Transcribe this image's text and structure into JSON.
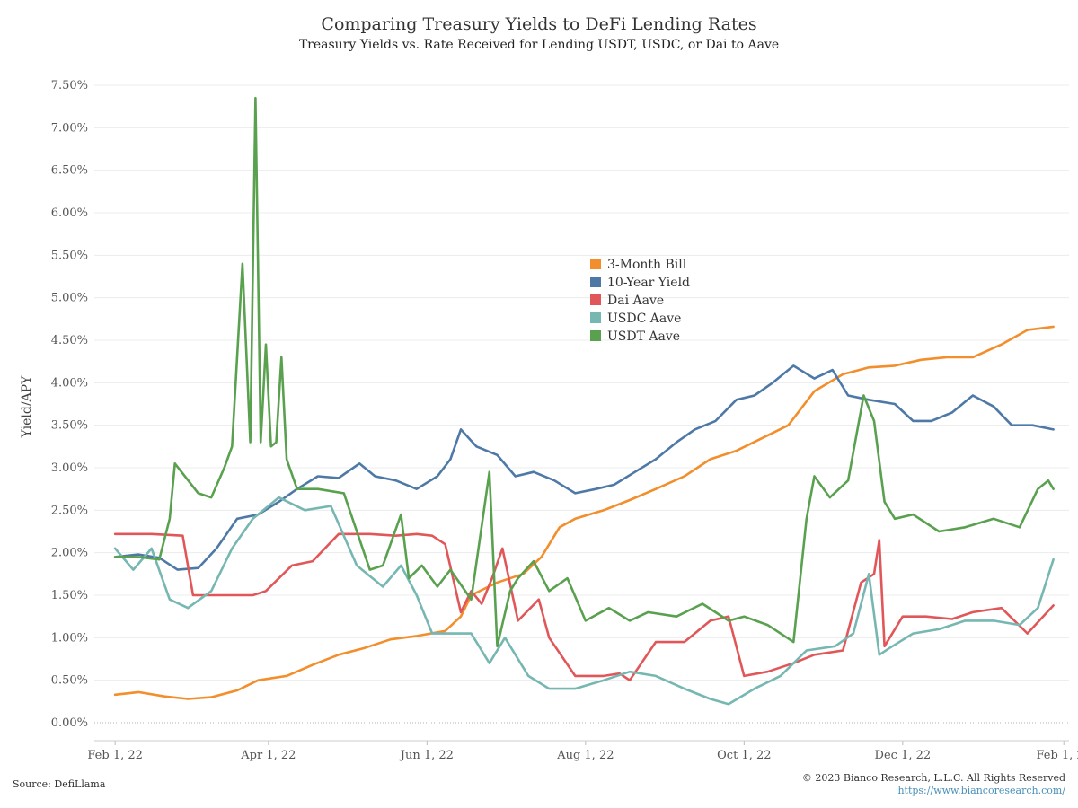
{
  "chart_data": {
    "type": "line",
    "title": "Comparing Treasury Yields to DeFi Lending Rates",
    "subtitle": "Treasury Yields vs. Rate Received for Lending USDT, USDC, or Dai to Aave",
    "ylabel": "Yield/APY",
    "xlabel": "",
    "ylim": [
      0,
      7.6
    ],
    "xlim": [
      "2022-01-24",
      "2023-02-03"
    ],
    "yticks": [
      0,
      0.5,
      1.0,
      1.5,
      2.0,
      2.5,
      3.0,
      3.5,
      4.0,
      4.5,
      5.0,
      5.5,
      6.0,
      6.5,
      7.0,
      7.5
    ],
    "ytick_labels": [
      "0.00%",
      "0.50%",
      "1.00%",
      "1.50%",
      "2.00%",
      "2.50%",
      "3.00%",
      "3.50%",
      "4.00%",
      "4.50%",
      "5.00%",
      "5.50%",
      "6.00%",
      "6.50%",
      "7.00%",
      "7.50%"
    ],
    "xticks": [
      "2022-02-01",
      "2022-04-01",
      "2022-06-01",
      "2022-08-01",
      "2022-10-01",
      "2022-12-01",
      "2023-02-01"
    ],
    "xtick_labels": [
      "Feb 1, 22",
      "Apr 1, 22",
      "Jun 1, 22",
      "Aug 1, 22",
      "Oct 1, 22",
      "Dec 1, 22",
      "Feb 1, 23"
    ],
    "grid": "horizontal",
    "legend_position": "center",
    "series": [
      {
        "name": "3-Month Bill",
        "color": "#f28e2b",
        "x": [
          "2022-02-01",
          "2022-02-10",
          "2022-02-20",
          "2022-03-01",
          "2022-03-10",
          "2022-03-20",
          "2022-03-28",
          "2022-04-08",
          "2022-04-18",
          "2022-04-28",
          "2022-05-08",
          "2022-05-18",
          "2022-05-28",
          "2022-06-08",
          "2022-06-14",
          "2022-06-18",
          "2022-06-28",
          "2022-07-08",
          "2022-07-15",
          "2022-07-22",
          "2022-07-28",
          "2022-08-08",
          "2022-08-18",
          "2022-08-28",
          "2022-09-08",
          "2022-09-18",
          "2022-09-28",
          "2022-10-08",
          "2022-10-18",
          "2022-10-28",
          "2022-11-08",
          "2022-11-18",
          "2022-11-28",
          "2022-12-08",
          "2022-12-18",
          "2022-12-28",
          "2023-01-08",
          "2023-01-18",
          "2023-01-28"
        ],
        "values": [
          0.33,
          0.36,
          0.31,
          0.28,
          0.3,
          0.38,
          0.5,
          0.55,
          0.68,
          0.8,
          0.88,
          0.98,
          1.02,
          1.08,
          1.25,
          1.5,
          1.65,
          1.75,
          1.95,
          2.3,
          2.4,
          2.5,
          2.62,
          2.75,
          2.9,
          3.1,
          3.2,
          3.35,
          3.5,
          3.9,
          4.1,
          4.18,
          4.2,
          4.27,
          4.3,
          4.3,
          4.45,
          4.62,
          4.66
        ]
      },
      {
        "name": "10-Year Yield",
        "color": "#4e79a7",
        "x": [
          "2022-02-01",
          "2022-02-10",
          "2022-02-18",
          "2022-02-25",
          "2022-03-05",
          "2022-03-12",
          "2022-03-20",
          "2022-03-28",
          "2022-04-05",
          "2022-04-12",
          "2022-04-20",
          "2022-04-28",
          "2022-05-06",
          "2022-05-12",
          "2022-05-20",
          "2022-05-28",
          "2022-06-05",
          "2022-06-10",
          "2022-06-14",
          "2022-06-20",
          "2022-06-28",
          "2022-07-05",
          "2022-07-12",
          "2022-07-20",
          "2022-07-28",
          "2022-08-05",
          "2022-08-12",
          "2022-08-20",
          "2022-08-28",
          "2022-09-05",
          "2022-09-12",
          "2022-09-20",
          "2022-09-28",
          "2022-10-05",
          "2022-10-12",
          "2022-10-20",
          "2022-10-28",
          "2022-11-04",
          "2022-11-10",
          "2022-11-18",
          "2022-11-28",
          "2022-12-05",
          "2022-12-12",
          "2022-12-20",
          "2022-12-28",
          "2023-01-05",
          "2023-01-12",
          "2023-01-20",
          "2023-01-28"
        ],
        "values": [
          1.95,
          1.98,
          1.94,
          1.8,
          1.82,
          2.05,
          2.4,
          2.45,
          2.6,
          2.75,
          2.9,
          2.88,
          3.05,
          2.9,
          2.85,
          2.75,
          2.9,
          3.1,
          3.45,
          3.25,
          3.15,
          2.9,
          2.95,
          2.85,
          2.7,
          2.75,
          2.8,
          2.95,
          3.1,
          3.3,
          3.45,
          3.55,
          3.8,
          3.85,
          4.0,
          4.2,
          4.05,
          4.15,
          3.85,
          3.8,
          3.75,
          3.55,
          3.55,
          3.65,
          3.85,
          3.72,
          3.5,
          3.5,
          3.45
        ]
      },
      {
        "name": "Dai Aave",
        "color": "#e15759",
        "x": [
          "2022-02-01",
          "2022-02-15",
          "2022-02-27",
          "2022-03-03",
          "2022-03-15",
          "2022-03-26",
          "2022-03-31",
          "2022-04-10",
          "2022-04-18",
          "2022-04-28",
          "2022-05-10",
          "2022-05-20",
          "2022-05-28",
          "2022-06-03",
          "2022-06-08",
          "2022-06-14",
          "2022-06-18",
          "2022-06-22",
          "2022-06-26",
          "2022-06-30",
          "2022-07-06",
          "2022-07-14",
          "2022-07-18",
          "2022-07-28",
          "2022-08-08",
          "2022-08-14",
          "2022-08-18",
          "2022-08-28",
          "2022-09-08",
          "2022-09-18",
          "2022-09-25",
          "2022-10-01",
          "2022-10-10",
          "2022-10-20",
          "2022-10-28",
          "2022-11-08",
          "2022-11-15",
          "2022-11-20",
          "2022-11-22",
          "2022-11-24",
          "2022-12-01",
          "2022-12-10",
          "2022-12-20",
          "2022-12-28",
          "2023-01-08",
          "2023-01-18",
          "2023-01-28"
        ],
        "values": [
          2.22,
          2.22,
          2.2,
          1.5,
          1.5,
          1.5,
          1.55,
          1.85,
          1.9,
          2.22,
          2.22,
          2.2,
          2.22,
          2.2,
          2.1,
          1.3,
          1.55,
          1.4,
          1.7,
          2.05,
          1.2,
          1.45,
          1.0,
          0.55,
          0.55,
          0.58,
          0.5,
          0.95,
          0.95,
          1.2,
          1.25,
          0.55,
          0.6,
          0.7,
          0.8,
          0.85,
          1.65,
          1.75,
          2.15,
          0.9,
          1.25,
          1.25,
          1.22,
          1.3,
          1.35,
          1.05,
          1.38
        ]
      },
      {
        "name": "USDC Aave",
        "color": "#76b7b2",
        "x": [
          "2022-02-01",
          "2022-02-08",
          "2022-02-15",
          "2022-02-22",
          "2022-03-01",
          "2022-03-10",
          "2022-03-18",
          "2022-03-26",
          "2022-04-05",
          "2022-04-15",
          "2022-04-25",
          "2022-05-05",
          "2022-05-15",
          "2022-05-22",
          "2022-05-28",
          "2022-06-03",
          "2022-06-10",
          "2022-06-18",
          "2022-06-25",
          "2022-07-01",
          "2022-07-10",
          "2022-07-18",
          "2022-07-28",
          "2022-08-08",
          "2022-08-18",
          "2022-08-28",
          "2022-09-08",
          "2022-09-18",
          "2022-09-25",
          "2022-10-05",
          "2022-10-15",
          "2022-10-25",
          "2022-11-05",
          "2022-11-12",
          "2022-11-18",
          "2022-11-22",
          "2022-11-26",
          "2022-12-05",
          "2022-12-15",
          "2022-12-25",
          "2023-01-05",
          "2023-01-15",
          "2023-01-22",
          "2023-01-28"
        ],
        "values": [
          2.05,
          1.8,
          2.05,
          1.45,
          1.35,
          1.55,
          2.05,
          2.4,
          2.65,
          2.5,
          2.55,
          1.85,
          1.6,
          1.85,
          1.5,
          1.05,
          1.05,
          1.05,
          0.7,
          1.0,
          0.55,
          0.4,
          0.4,
          0.5,
          0.6,
          0.55,
          0.4,
          0.28,
          0.22,
          0.4,
          0.55,
          0.85,
          0.9,
          1.05,
          1.75,
          0.8,
          0.88,
          1.05,
          1.1,
          1.2,
          1.2,
          1.15,
          1.35,
          1.92
        ]
      },
      {
        "name": "USDT Aave",
        "color": "#59a14f",
        "x": [
          "2022-02-01",
          "2022-02-10",
          "2022-02-18",
          "2022-02-22",
          "2022-02-24",
          "2022-03-05",
          "2022-03-10",
          "2022-03-15",
          "2022-03-18",
          "2022-03-22",
          "2022-03-25",
          "2022-03-27",
          "2022-03-29",
          "2022-03-31",
          "2022-04-02",
          "2022-04-04",
          "2022-04-06",
          "2022-04-08",
          "2022-04-12",
          "2022-04-20",
          "2022-04-30",
          "2022-05-10",
          "2022-05-15",
          "2022-05-22",
          "2022-05-25",
          "2022-05-30",
          "2022-06-05",
          "2022-06-10",
          "2022-06-18",
          "2022-06-25",
          "2022-06-28",
          "2022-07-03",
          "2022-07-06",
          "2022-07-12",
          "2022-07-18",
          "2022-07-25",
          "2022-08-01",
          "2022-08-10",
          "2022-08-18",
          "2022-08-25",
          "2022-09-05",
          "2022-09-15",
          "2022-09-25",
          "2022-10-01",
          "2022-10-10",
          "2022-10-20",
          "2022-10-25",
          "2022-10-28",
          "2022-11-03",
          "2022-11-10",
          "2022-11-16",
          "2022-11-20",
          "2022-11-24",
          "2022-11-28",
          "2022-12-05",
          "2022-12-15",
          "2022-12-25",
          "2023-01-05",
          "2023-01-15",
          "2023-01-22",
          "2023-01-26",
          "2023-01-28"
        ],
        "values": [
          1.95,
          1.95,
          1.92,
          2.4,
          3.05,
          2.7,
          2.65,
          3.0,
          3.25,
          5.4,
          3.3,
          7.35,
          3.3,
          4.45,
          3.25,
          3.3,
          4.3,
          3.1,
          2.75,
          2.75,
          2.7,
          1.8,
          1.85,
          2.45,
          1.7,
          1.85,
          1.6,
          1.8,
          1.45,
          2.95,
          0.9,
          1.55,
          1.7,
          1.9,
          1.55,
          1.7,
          1.2,
          1.35,
          1.2,
          1.3,
          1.25,
          1.4,
          1.2,
          1.25,
          1.15,
          0.95,
          2.4,
          2.9,
          2.65,
          2.85,
          3.85,
          3.55,
          2.6,
          2.4,
          2.45,
          2.25,
          2.3,
          2.4,
          2.3,
          2.75,
          2.85,
          2.75
        ]
      }
    ]
  },
  "footer": {
    "source": "Source: DefiLlama",
    "copyright": "© 2023 Bianco Research, L.L.C. All Rights Reserved",
    "website": "https://www.biancoresearch.com/"
  }
}
